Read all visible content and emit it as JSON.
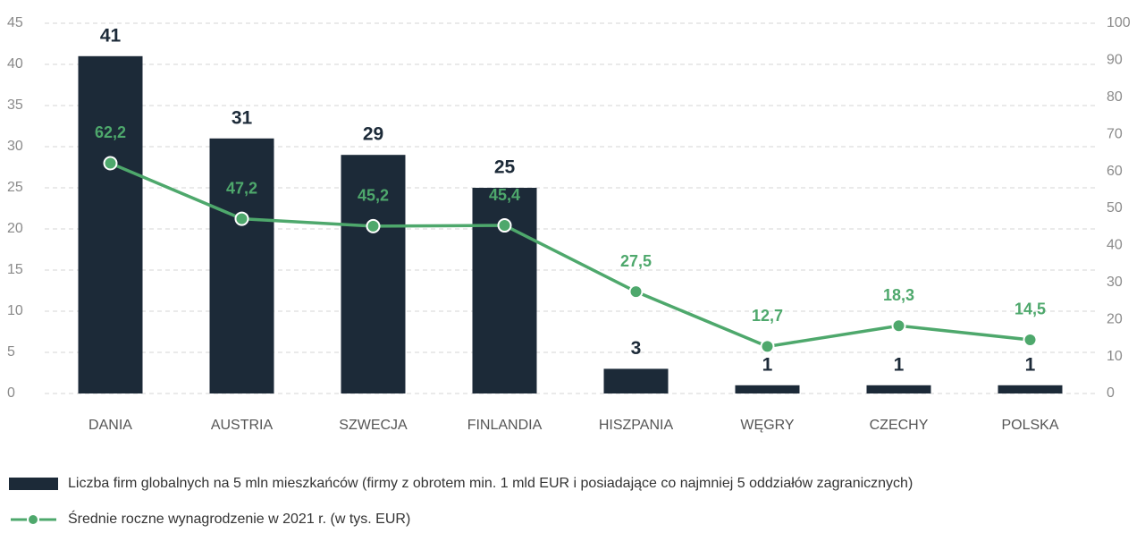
{
  "chart_data": {
    "type": "bar",
    "categories": [
      "DANIA",
      "AUSTRIA",
      "SZWECJA",
      "FINLANDIA",
      "HISZPANIA",
      "WĘGRY",
      "CZECHY",
      "POLSKA"
    ],
    "series": [
      {
        "name": "Liczba firm globalnych na 5 mln mieszkańców (firmy z obrotem min. 1 mld EUR i posiadające co najmniej 5 oddziałów zagranicznych)",
        "type": "bar",
        "color": "#1c2a38",
        "values": [
          41,
          31,
          29,
          25,
          3,
          1,
          1,
          1
        ]
      },
      {
        "name": "Średnie roczne wynagrodzenie w 2021 r. (w tys. EUR)",
        "type": "line",
        "axis": "y2",
        "color": "#4ea86c",
        "values": [
          62.2,
          47.2,
          45.2,
          45.4,
          27.5,
          12.7,
          18.3,
          14.5
        ],
        "value_labels": [
          "62,2",
          "47,2",
          "45,2",
          "45,4",
          "27,5",
          "12,7",
          "18,3",
          "14,5"
        ]
      }
    ],
    "ylim": [
      0,
      45
    ],
    "yticks": [
      0,
      5,
      10,
      15,
      20,
      25,
      30,
      35,
      40,
      45
    ],
    "y2lim": [
      0,
      100
    ],
    "y2ticks": [
      0,
      10,
      20,
      30,
      40,
      50,
      60,
      70,
      80,
      90,
      100
    ],
    "grid": true,
    "legend": "bottom"
  }
}
